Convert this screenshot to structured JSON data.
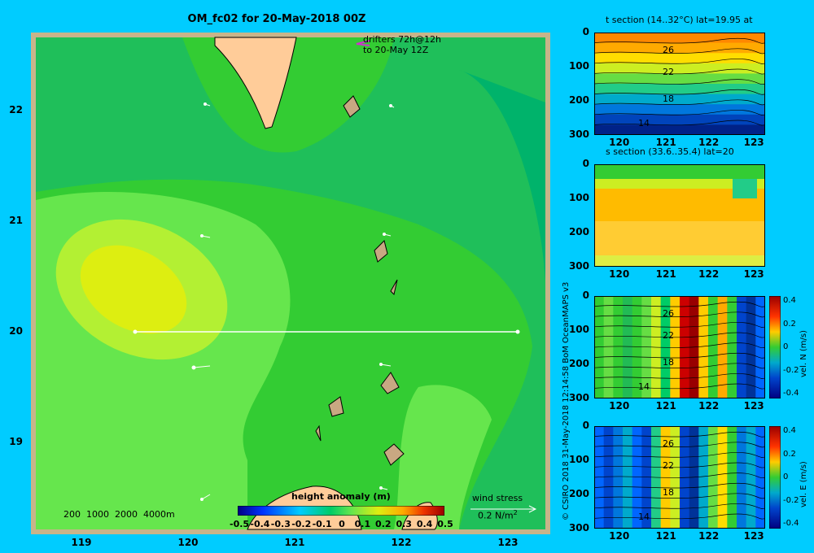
{
  "map": {
    "title": "OM_fc02 for 20-May-2018 00Z",
    "lat_ticks": [
      "22",
      "21",
      "20",
      "19"
    ],
    "lon_ticks": [
      "119",
      "120",
      "121",
      "122",
      "123"
    ],
    "drifters_line1": "drifters 72h@12h",
    "drifters_line2": "to 20-May 12Z",
    "depth_legend": "200  1000  2000  4000m",
    "wind_stress_label": "wind stress",
    "wind_stress_scale": "0.2 N/m",
    "wind_stress_exp": "2",
    "section_line_lat": 20,
    "colors": {
      "background": "#00ccff",
      "land": "#ffcc99",
      "shallow": "#c8a882"
    }
  },
  "colorbar": {
    "title": "height anomaly (m)",
    "ticks": [
      "-0.5",
      "-0.4",
      "-0.3",
      "-0.2",
      "-0.1",
      "0",
      "0.1",
      "0.2",
      "0.3",
      "0.4",
      "0.5"
    ]
  },
  "panels": [
    {
      "title": "t section (14..32°C) lat=19.95 at",
      "depth_ticks": [
        "0",
        "100",
        "200",
        "300"
      ],
      "x_ticks": [
        "120",
        "121",
        "122",
        "123"
      ],
      "contour_labels": [
        "26",
        "22",
        "18",
        "14"
      ],
      "colorbar_label": "",
      "colorbar_ticks": []
    },
    {
      "title": "s section (33.6..35.4) lat=20",
      "depth_ticks": [
        "0",
        "100",
        "200",
        "300"
      ],
      "x_ticks": [
        "120",
        "121",
        "122",
        "123"
      ],
      "contour_labels": [],
      "colorbar_label": "",
      "colorbar_ticks": []
    },
    {
      "title": "",
      "depth_ticks": [
        "0",
        "100",
        "200",
        "300"
      ],
      "x_ticks": [
        "120",
        "121",
        "122",
        "123"
      ],
      "contour_labels": [
        "26",
        "22",
        "18",
        "14"
      ],
      "colorbar_label": "vel. N (m/s)",
      "colorbar_ticks": [
        "0.4",
        "0.2",
        "0",
        "-0.2",
        "-0.4"
      ]
    },
    {
      "title": "",
      "depth_ticks": [
        "0",
        "100",
        "200",
        "300"
      ],
      "x_ticks": [
        "120",
        "121",
        "122",
        "123"
      ],
      "contour_labels": [
        "26",
        "22",
        "18",
        "14"
      ],
      "colorbar_label": "vel. E (m/s)",
      "colorbar_ticks": [
        "0.4",
        "0.2",
        "0",
        "-0.2",
        "-0.4"
      ]
    }
  ],
  "credit": "© CSIRO 2018   31-May-2018 12:14:58 BoM OceanMAPS v3"
}
